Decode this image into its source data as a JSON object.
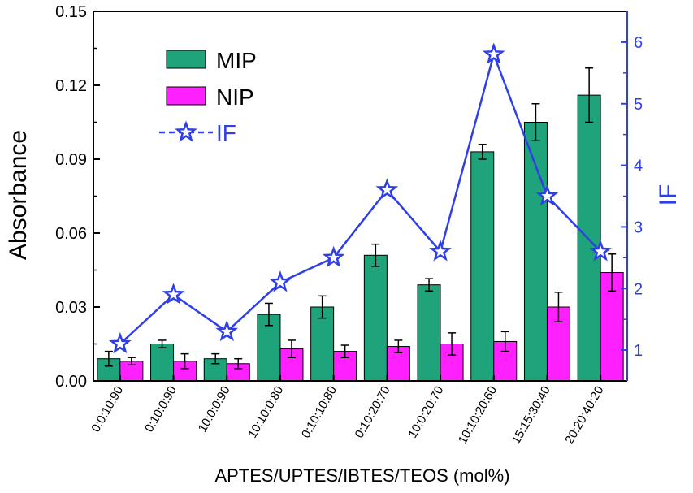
{
  "chart_data": {
    "type": "bar",
    "xlabel": "APTES/UPTES/IBTES/TEOS (mol%)",
    "ylabel": "Absorbance",
    "y2label": "IF",
    "categories": [
      "0:0:10:90",
      "0:10:0:90",
      "10:0:0:90",
      "10:10:0:80",
      "0:10:10:80",
      "0:10:20:70",
      "10:0:20:70",
      "10:10:20:60",
      "15:15:30:40",
      "20:20:40:20"
    ],
    "ylim": [
      0,
      0.15
    ],
    "yticks": [
      "0.00",
      "0.03",
      "0.06",
      "0.09",
      "0.12",
      "0.15"
    ],
    "ytick_values": [
      0,
      0.03,
      0.06,
      0.09,
      0.12,
      0.15
    ],
    "y2lim": [
      0.5,
      6.5
    ],
    "y2ticks": [
      "1",
      "2",
      "3",
      "4",
      "5",
      "6"
    ],
    "y2tick_values": [
      1,
      2,
      3,
      4,
      5,
      6
    ],
    "series": [
      {
        "name": "MIP",
        "kind": "bar",
        "color": "#1fa37a",
        "values": [
          0.009,
          0.015,
          0.009,
          0.027,
          0.03,
          0.051,
          0.039,
          0.093,
          0.105,
          0.116
        ],
        "errors": [
          0.003,
          0.0015,
          0.002,
          0.0045,
          0.0045,
          0.0045,
          0.0025,
          0.003,
          0.0075,
          0.011
        ]
      },
      {
        "name": "NIP",
        "kind": "bar",
        "color": "#ff20ff",
        "values": [
          0.008,
          0.008,
          0.007,
          0.013,
          0.012,
          0.014,
          0.015,
          0.016,
          0.03,
          0.044
        ],
        "errors": [
          0.0015,
          0.003,
          0.002,
          0.0035,
          0.0025,
          0.0025,
          0.0045,
          0.004,
          0.006,
          0.0075
        ]
      },
      {
        "name": "IF",
        "kind": "line",
        "axis": "right",
        "color": "#2f3fe8",
        "values": [
          1.1,
          1.9,
          1.3,
          2.1,
          2.5,
          3.6,
          2.6,
          5.8,
          3.5,
          2.6
        ]
      }
    ],
    "legend": [
      "MIP",
      "NIP",
      "IF"
    ],
    "legend_position": "top-left"
  }
}
